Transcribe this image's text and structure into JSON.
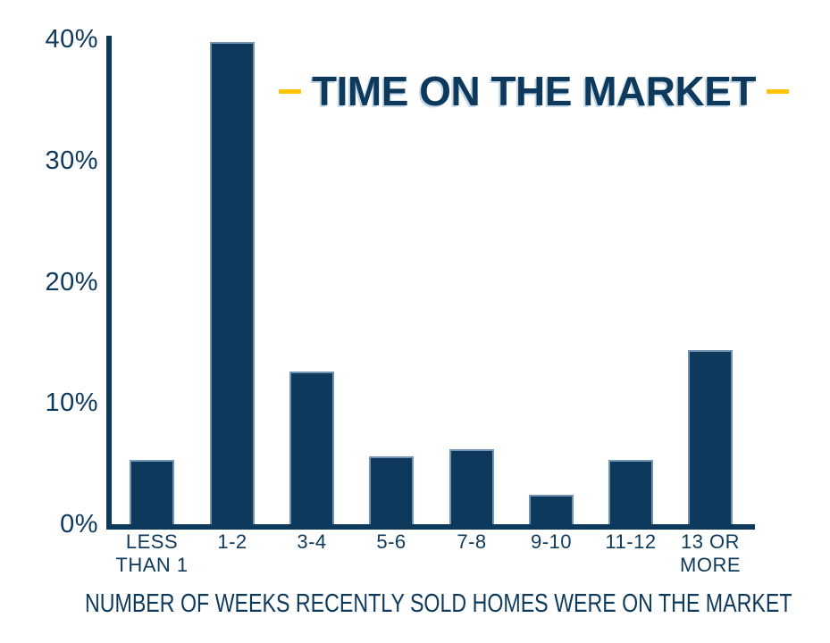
{
  "colors": {
    "navy": "#0d3a5c",
    "accent": "#ffc40a",
    "bar_edge": "#aac6db",
    "background": "#ffffff"
  },
  "chart_data": {
    "type": "bar",
    "title": "TIME ON THE MARKET",
    "categories": [
      "LESS THAN 1",
      "1-2",
      "3-4",
      "5-6",
      "7-8",
      "9-10",
      "11-12",
      "13 OR MORE"
    ],
    "categories_lines": [
      [
        "LESS",
        "THAN 1"
      ],
      [
        "1-2"
      ],
      [
        "3-4"
      ],
      [
        "5-6"
      ],
      [
        "7-8"
      ],
      [
        "9-10"
      ],
      [
        "11-12"
      ],
      [
        "13 OR",
        "MORE"
      ]
    ],
    "values": [
      5.3,
      39.8,
      12.6,
      5.6,
      6.2,
      2.4,
      5.3,
      14.4
    ],
    "unit": "%",
    "xlabel": "NUMBER OF WEEKS RECENTLY SOLD HOMES WERE ON THE MARKET",
    "ylabel": "",
    "ylim": [
      0,
      40
    ],
    "yticks": [
      {
        "value": 0,
        "label": "0%"
      },
      {
        "value": 10,
        "label": "10%"
      },
      {
        "value": 20,
        "label": "20%"
      },
      {
        "value": 30,
        "label": "30%"
      },
      {
        "value": 40,
        "label": "40%"
      }
    ],
    "grid": false,
    "legend": null,
    "bar_color": "#0d3a5c",
    "accent_color": "#ffc40a"
  }
}
